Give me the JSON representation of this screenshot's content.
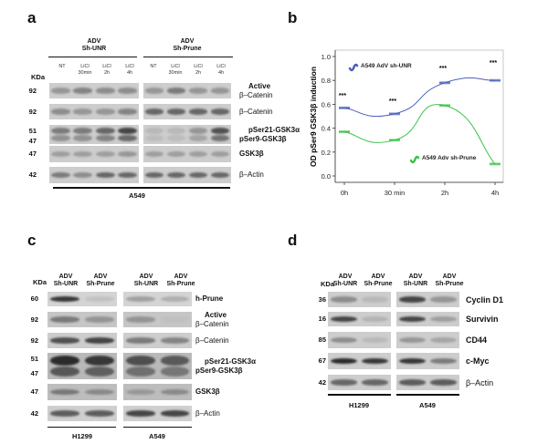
{
  "panel_a": {
    "label": "a",
    "kda_label": "KDa",
    "groups": [
      {
        "line1": "ADV",
        "line2": "Sh-UNR"
      },
      {
        "line1": "ADV",
        "line2": "Sh-Prune"
      }
    ],
    "lanes": [
      {
        "l1": "NT",
        "l2": ""
      },
      {
        "l1": "LiCl",
        "l2": "30min"
      },
      {
        "l1": "LiCl",
        "l2": "2h"
      },
      {
        "l1": "LiCl",
        "l2": "4h"
      }
    ],
    "rows": [
      {
        "kda": [
          "92"
        ],
        "name": [
          "Active",
          "β–Catenin"
        ],
        "bands": [
          0.45,
          0.55,
          0.5,
          0.5,
          0.45,
          0.6,
          0.45,
          0.45
        ]
      },
      {
        "kda": [
          "92"
        ],
        "name": [
          "β–Catenin"
        ],
        "bands": [
          0.5,
          0.45,
          0.45,
          0.55,
          0.7,
          0.7,
          0.7,
          0.7
        ]
      },
      {
        "kda": [
          "51",
          "47"
        ],
        "name": [
          "pSer21-GSK3α",
          "pSer9-GSK3β"
        ],
        "bands": [
          0.6,
          0.6,
          0.7,
          0.85,
          0.2,
          0.2,
          0.45,
          0.8
        ]
      },
      {
        "kda": [
          "47"
        ],
        "name": [
          "GSK3β"
        ],
        "bands": [
          0.4,
          0.4,
          0.4,
          0.45,
          0.4,
          0.4,
          0.4,
          0.4
        ]
      },
      {
        "kda": [
          "42"
        ],
        "name": [
          "β–Actin"
        ],
        "bands": [
          0.6,
          0.5,
          0.7,
          0.7,
          0.7,
          0.7,
          0.7,
          0.7
        ]
      }
    ],
    "cell_line": "A549"
  },
  "panel_b": {
    "label": "b"
  },
  "chart_data": {
    "type": "line",
    "xlabel": "",
    "ylabel": "OD pSer9 GSK3β induction",
    "categories": [
      "0h",
      "30 min",
      "2h",
      "4h"
    ],
    "ylim": [
      0.0,
      1.0
    ],
    "yticks": [
      "0.0",
      "0.2",
      "0.4",
      "0.6",
      "0.8",
      "1.0"
    ],
    "grid": false,
    "series": [
      {
        "name": "A549 AdV sh-UNR",
        "color": "#4a5fb8",
        "values": [
          0.57,
          0.52,
          0.78,
          0.8
        ]
      },
      {
        "name": "A549 Adv sh-Prune",
        "color": "#3ec24a",
        "values": [
          0.37,
          0.3,
          0.59,
          0.1
        ]
      }
    ],
    "annotations": [
      "***",
      "***",
      "***",
      "***"
    ]
  },
  "panel_c": {
    "label": "c",
    "kda_label": "KDa",
    "lanes": [
      {
        "l1": "ADV",
        "l2": "Sh-UNR"
      },
      {
        "l1": "ADV",
        "l2": "Sh-Prune"
      },
      {
        "l1": "ADV",
        "l2": "Sh-UNR"
      },
      {
        "l1": "ADV",
        "l2": "Sh-Prune"
      }
    ],
    "rows": [
      {
        "kda": [
          "60"
        ],
        "name": [
          "h-Prune"
        ],
        "bands": [
          0.9,
          0.15,
          0.4,
          0.3
        ]
      },
      {
        "kda": [
          "92"
        ],
        "name": [
          "Active",
          "β–Catenin"
        ],
        "bands": [
          0.6,
          0.45,
          0.45,
          0.1
        ]
      },
      {
        "kda": [
          "92"
        ],
        "name": [
          "β–Catenin"
        ],
        "bands": [
          0.8,
          0.85,
          0.6,
          0.55
        ]
      },
      {
        "kda": [
          "51",
          "47"
        ],
        "name": [
          "pSer21-GSK3α",
          "pSer9-GSK3β"
        ],
        "bands": [
          0.95,
          0.9,
          0.8,
          0.75
        ]
      },
      {
        "kda": [
          "47"
        ],
        "name": [
          "GSK3β"
        ],
        "bands": [
          0.6,
          0.5,
          0.4,
          0.5
        ]
      },
      {
        "kda": [
          "42"
        ],
        "name": [
          "β–Actin"
        ],
        "bands": [
          0.75,
          0.75,
          0.85,
          0.85
        ]
      }
    ],
    "cell_lines": [
      "H1299",
      "A549"
    ]
  },
  "panel_d": {
    "label": "d",
    "kda_label": "KDa",
    "lanes": [
      {
        "l1": "ADV",
        "l2": "Sh-UNR"
      },
      {
        "l1": "ADV",
        "l2": "Sh-Prune"
      },
      {
        "l1": "ADV",
        "l2": "Sh-UNR"
      },
      {
        "l1": "ADV",
        "l2": "Sh-Prune"
      }
    ],
    "rows": [
      {
        "kda": [
          "36"
        ],
        "name": [
          "Cyclin D1"
        ],
        "bands": [
          0.5,
          0.2,
          0.85,
          0.45
        ]
      },
      {
        "kda": [
          "16"
        ],
        "name": [
          "Survivin"
        ],
        "bands": [
          0.85,
          0.25,
          0.85,
          0.4
        ]
      },
      {
        "kda": [
          "85"
        ],
        "name": [
          "CD44"
        ],
        "bands": [
          0.5,
          0.2,
          0.45,
          0.35
        ]
      },
      {
        "kda": [
          "67"
        ],
        "name": [
          "c-Myc"
        ],
        "bands": [
          0.95,
          0.9,
          0.9,
          0.6
        ]
      },
      {
        "kda": [
          "42"
        ],
        "name": [
          "β–Actin"
        ],
        "bands": [
          0.7,
          0.7,
          0.75,
          0.75
        ]
      }
    ],
    "cell_lines": [
      "H1299",
      "A549"
    ]
  }
}
